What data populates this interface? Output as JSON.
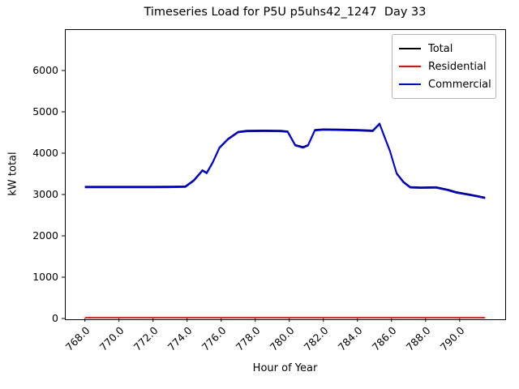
{
  "chart_data": {
    "type": "line",
    "title": "Timeseries Load for P5U p5uhs42_1247  Day 33",
    "xlabel": "Hour of Year",
    "ylabel": "kW total",
    "xlim": [
      766.825,
      792.675
    ],
    "ylim": [
      0,
      7000
    ],
    "grid": false,
    "x_ticks": {
      "values": [
        768,
        770,
        772,
        774,
        776,
        778,
        780,
        782,
        784,
        786,
        788,
        790
      ],
      "labels": [
        "768.0",
        "770.0",
        "772.0",
        "774.0",
        "776.0",
        "778.0",
        "780.0",
        "782.0",
        "784.0",
        "786.0",
        "788.0",
        "790.0"
      ],
      "rotation": 45
    },
    "y_ticks": {
      "values": [
        0,
        1000,
        2000,
        3000,
        4000,
        5000,
        6000
      ],
      "labels": [
        "0",
        "1000",
        "2000",
        "3000",
        "4000",
        "5000",
        "6000"
      ]
    },
    "legend": {
      "position": "upper right",
      "entries": [
        {
          "label": "Total",
          "color": "#000000"
        },
        {
          "label": "Residential",
          "color": "#ff0000"
        },
        {
          "label": "Commercial",
          "color": "#0000ff"
        }
      ]
    },
    "series": [
      {
        "name": "Total",
        "color": "#000000",
        "points": [
          [
            768.0,
            3190
          ],
          [
            769.0,
            3190
          ],
          [
            770.0,
            3190
          ],
          [
            771.0,
            3190
          ],
          [
            772.0,
            3190
          ],
          [
            773.0,
            3192
          ],
          [
            773.9,
            3198
          ],
          [
            774.4,
            3350
          ],
          [
            774.9,
            3590
          ],
          [
            775.15,
            3530
          ],
          [
            775.5,
            3780
          ],
          [
            775.9,
            4140
          ],
          [
            776.4,
            4350
          ],
          [
            777.0,
            4520
          ],
          [
            777.5,
            4545
          ],
          [
            778.5,
            4550
          ],
          [
            779.5,
            4545
          ],
          [
            779.9,
            4530
          ],
          [
            780.35,
            4200
          ],
          [
            780.8,
            4150
          ],
          [
            781.1,
            4200
          ],
          [
            781.5,
            4565
          ],
          [
            782.0,
            4580
          ],
          [
            783.0,
            4575
          ],
          [
            784.0,
            4565
          ],
          [
            784.9,
            4550
          ],
          [
            785.3,
            4720
          ],
          [
            785.6,
            4390
          ],
          [
            785.9,
            4070
          ],
          [
            786.3,
            3520
          ],
          [
            786.7,
            3310
          ],
          [
            787.1,
            3185
          ],
          [
            787.7,
            3175
          ],
          [
            788.6,
            3180
          ],
          [
            789.3,
            3120
          ],
          [
            789.8,
            3060
          ],
          [
            790.5,
            3010
          ],
          [
            791.0,
            2970
          ],
          [
            791.5,
            2925
          ]
        ]
      },
      {
        "name": "Residential",
        "color": "#ff0000",
        "points": [
          [
            768.0,
            20
          ],
          [
            770.0,
            20
          ],
          [
            772.0,
            20
          ],
          [
            774.0,
            20
          ],
          [
            776.0,
            20
          ],
          [
            778.0,
            20
          ],
          [
            780.0,
            20
          ],
          [
            782.0,
            20
          ],
          [
            784.0,
            20
          ],
          [
            786.0,
            20
          ],
          [
            788.0,
            20
          ],
          [
            790.0,
            20
          ],
          [
            791.5,
            20
          ]
        ]
      },
      {
        "name": "Commercial",
        "color": "#0000ff",
        "points": [
          [
            768.0,
            3170
          ],
          [
            769.0,
            3170
          ],
          [
            770.0,
            3170
          ],
          [
            771.0,
            3170
          ],
          [
            772.0,
            3170
          ],
          [
            773.0,
            3172
          ],
          [
            773.9,
            3178
          ],
          [
            774.4,
            3330
          ],
          [
            774.9,
            3570
          ],
          [
            775.15,
            3510
          ],
          [
            775.5,
            3760
          ],
          [
            775.9,
            4120
          ],
          [
            776.4,
            4330
          ],
          [
            777.0,
            4500
          ],
          [
            777.5,
            4525
          ],
          [
            778.5,
            4530
          ],
          [
            779.5,
            4525
          ],
          [
            779.9,
            4510
          ],
          [
            780.35,
            4180
          ],
          [
            780.8,
            4130
          ],
          [
            781.1,
            4180
          ],
          [
            781.5,
            4545
          ],
          [
            782.0,
            4560
          ],
          [
            783.0,
            4555
          ],
          [
            784.0,
            4545
          ],
          [
            784.9,
            4530
          ],
          [
            785.3,
            4700
          ],
          [
            785.6,
            4370
          ],
          [
            785.9,
            4050
          ],
          [
            786.3,
            3500
          ],
          [
            786.7,
            3290
          ],
          [
            787.1,
            3165
          ],
          [
            787.7,
            3155
          ],
          [
            788.6,
            3160
          ],
          [
            789.3,
            3100
          ],
          [
            789.8,
            3040
          ],
          [
            790.5,
            2990
          ],
          [
            791.0,
            2950
          ],
          [
            791.5,
            2905
          ]
        ]
      }
    ]
  }
}
